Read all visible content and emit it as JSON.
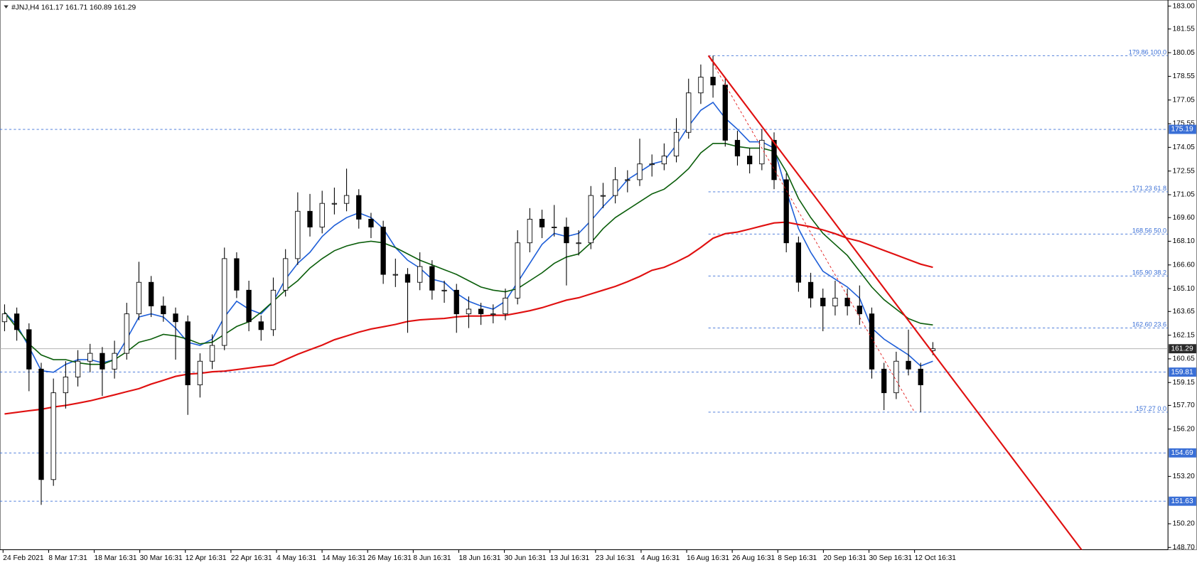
{
  "chart_data": {
    "type": "candlestick",
    "symbol": "#JNJ,H4",
    "ohlc_header": [
      161.17,
      161.71,
      160.89,
      161.29
    ],
    "ylim": [
      148.7,
      183
    ],
    "yticks": [
      {
        "value": 183,
        "label": "183.00"
      },
      181.55,
      180.05,
      178.55,
      177.05,
      175.55,
      174.05,
      172.55,
      171.05,
      {
        "value": 169.6,
        "label": "169.60"
      },
      {
        "value": 168.1,
        "label": "168.10"
      },
      {
        "value": 166.6,
        "label": "166.60"
      },
      {
        "value": 165.1,
        "label": "165.10"
      },
      163.65,
      162.15,
      160.65,
      159.15,
      {
        "value": 157.7,
        "label": "157.70"
      },
      {
        "value": 156.2,
        "label": "156.20"
      },
      {
        "value": 153.2,
        "label": "153.20"
      },
      {
        "value": 150.2,
        "label": "150.20"
      },
      {
        "value": 148.7,
        "label": "148.70"
      }
    ],
    "time_labels": [
      "24 Feb 2021",
      "8 Mar 17:31",
      "18 Mar 16:31",
      "30 Mar 16:31",
      "12 Apr 16:31",
      "22 Apr 16:31",
      "4 May 16:31",
      "14 May 16:31",
      "26 May 16:31",
      "8 Jun 16:31",
      "18 Jun 16:31",
      "30 Jun 16:31",
      "13 Jul 16:31",
      "23 Jul 16:31",
      "4 Aug 16:31",
      "16 Aug 16:31",
      "26 Aug 16:31",
      "8 Sep 16:31",
      "20 Sep 16:31",
      "30 Sep 16:31",
      "12 Oct 16:31"
    ],
    "candles": [
      [
        163.0,
        164.1,
        162.4,
        163.5
      ],
      [
        163.5,
        163.9,
        161.8,
        162.5
      ],
      [
        162.5,
        162.9,
        158.6,
        160
      ],
      [
        160,
        160.4,
        151.4,
        153
      ],
      [
        153,
        159.4,
        152.6,
        158.5
      ],
      [
        158.5,
        160.5,
        157.5,
        159.5
      ],
      [
        159.5,
        161.2,
        158.9,
        160.5
      ],
      [
        160.5,
        161.6,
        159.8,
        161
      ],
      [
        161,
        161.4,
        158.3,
        160
      ],
      [
        160,
        161.8,
        159.4,
        161
      ],
      [
        161,
        164.2,
        160.6,
        163.5
      ],
      [
        163.5,
        166.8,
        163.1,
        165.5
      ],
      [
        165.5,
        165.9,
        163.3,
        164
      ],
      [
        164,
        164.6,
        163,
        163.5
      ],
      [
        163.5,
        163.9,
        160.6,
        163
      ],
      [
        163,
        163.4,
        157.1,
        159
      ],
      [
        159,
        161,
        158.2,
        160.5
      ],
      [
        160.5,
        162.2,
        160,
        161.5
      ],
      [
        161.5,
        167.7,
        161.2,
        167
      ],
      [
        167,
        167.4,
        164.5,
        165
      ],
      [
        165,
        165.6,
        162.4,
        163
      ],
      [
        163,
        163.4,
        161.8,
        162.5
      ],
      [
        162.5,
        165.8,
        162.1,
        165
      ],
      [
        165,
        167.6,
        164.6,
        167
      ],
      [
        167,
        171.2,
        166.6,
        170
      ],
      [
        170,
        171.1,
        168.4,
        169
      ],
      [
        169,
        171.3,
        168.6,
        170.5
      ],
      [
        170.5,
        171.5,
        169.8,
        170.5
      ],
      [
        170.5,
        172.7,
        170,
        171
      ],
      [
        171,
        171.4,
        168.9,
        169.5
      ],
      [
        169.5,
        169.9,
        168.3,
        169
      ],
      [
        169,
        169.4,
        165.4,
        166
      ],
      [
        166,
        167,
        165.2,
        166
      ],
      [
        166,
        166.4,
        162.3,
        165.5
      ],
      [
        165.5,
        167.4,
        165,
        166.5
      ],
      [
        166.5,
        166.9,
        164.4,
        165
      ],
      [
        165,
        165.6,
        164.2,
        165
      ],
      [
        165,
        165.4,
        162.3,
        163.5
      ],
      [
        163.5,
        164.6,
        162.6,
        163.8
      ],
      [
        163.8,
        164.2,
        162.8,
        163.5
      ],
      [
        163.5,
        164.1,
        162.9,
        163.5
      ],
      [
        163.5,
        165.1,
        163.1,
        164.5
      ],
      [
        164.5,
        168.8,
        164.1,
        168
      ],
      [
        168,
        170.2,
        167.4,
        169.5
      ],
      [
        169.5,
        170.1,
        168.3,
        169
      ],
      [
        169,
        170.4,
        168.4,
        169
      ],
      [
        169,
        169.6,
        165.3,
        168
      ],
      [
        168,
        168.8,
        167.2,
        168
      ],
      [
        168,
        171.6,
        167.6,
        171
      ],
      [
        171,
        171.8,
        170.2,
        171
      ],
      [
        171,
        172.8,
        170.5,
        172
      ],
      [
        172,
        172.6,
        171.2,
        172
      ],
      [
        172,
        174.6,
        171.6,
        173
      ],
      [
        173,
        173.6,
        172.2,
        173
      ],
      [
        173,
        174.3,
        172.6,
        173.5
      ],
      [
        173.5,
        175.9,
        173.1,
        175
      ],
      [
        175,
        178.4,
        174.6,
        177.5
      ],
      [
        177.5,
        179.3,
        176.8,
        178.5
      ],
      [
        178.5,
        179.86,
        177.2,
        178
      ],
      [
        178,
        178.4,
        174.1,
        174.5
      ],
      [
        174.5,
        175.1,
        172.9,
        173.5
      ],
      [
        173.5,
        174,
        172.4,
        173
      ],
      [
        173,
        175.2,
        172.6,
        174.5
      ],
      [
        174.5,
        175,
        171.4,
        172
      ],
      [
        172,
        172.4,
        167.4,
        168
      ],
      [
        168,
        168.4,
        164.9,
        165.5
      ],
      [
        165.5,
        166.1,
        163.9,
        164.5
      ],
      [
        164.5,
        165.1,
        162.4,
        164
      ],
      [
        164,
        165.6,
        163.4,
        164.5
      ],
      [
        164.5,
        165.1,
        163.4,
        164
      ],
      [
        164,
        165.3,
        162.8,
        163.5
      ],
      [
        163.5,
        163.9,
        159.4,
        160
      ],
      [
        160,
        160.4,
        157.4,
        158.5
      ],
      [
        158.5,
        161.1,
        158.1,
        160.5
      ],
      [
        160.5,
        162.5,
        159.6,
        160
      ],
      [
        160,
        160.4,
        157.27,
        159
      ],
      [
        161.17,
        161.71,
        160.89,
        161.29
      ]
    ],
    "series": [
      {
        "color": "#1f5fd8",
        "values": [
          163.6,
          162.8,
          161.4,
          159.9,
          159.8,
          160.3,
          160.6,
          160.6,
          160.4,
          160.6,
          161.9,
          163.3,
          163.5,
          163.3,
          162.6,
          161.7,
          161.5,
          161.9,
          163.3,
          164.3,
          163.8,
          163.5,
          164.3,
          165.7,
          166.7,
          167.4,
          168.4,
          169.1,
          169.6,
          169.9,
          169.6,
          168.9,
          167.7,
          166.9,
          166.4,
          165.7,
          165.5,
          164.8,
          164.3,
          164.0,
          163.8,
          164.3,
          165.5,
          166.7,
          167.9,
          168.6,
          168.4,
          168.6,
          169.4,
          170.3,
          171.1,
          172.0,
          172.5,
          173.0,
          173.2,
          174.2,
          175.4,
          176.4,
          176.9,
          175.9,
          175.2,
          174.4,
          174.4,
          174.0,
          171.3,
          168.9,
          167.4,
          166.2,
          165.7,
          165.2,
          164.5,
          162.6,
          161.9,
          161.4,
          160.9,
          160.2,
          160.5
        ]
      },
      {
        "color": "#0b5e0b",
        "values": [
          163.6,
          162.6,
          161.6,
          160.9,
          160.6,
          160.6,
          160.4,
          160.3,
          160.3,
          160.6,
          161.1,
          161.7,
          161.9,
          162.2,
          162.1,
          161.9,
          161.6,
          161.7,
          162.2,
          162.7,
          163.0,
          163.6,
          164.3,
          165.0,
          165.6,
          166.4,
          167.0,
          167.5,
          167.8,
          168.0,
          168.1,
          168.0,
          167.7,
          167.3,
          166.9,
          166.6,
          166.3,
          166.0,
          165.6,
          165.2,
          165.0,
          164.9,
          165.1,
          165.6,
          166.1,
          166.7,
          167.1,
          167.3,
          168.0,
          168.9,
          169.6,
          170.1,
          170.6,
          171.1,
          171.4,
          172.0,
          172.7,
          173.7,
          174.3,
          174.3,
          174.1,
          174.0,
          174.0,
          173.8,
          172.5,
          170.8,
          169.6,
          168.6,
          167.9,
          167.2,
          166.2,
          165.2,
          164.4,
          163.8,
          163.2,
          162.9,
          162.8
        ]
      },
      {
        "color": "#e01010",
        "values": [
          157.16,
          157.26,
          157.36,
          157.45,
          157.6,
          157.7,
          157.84,
          157.99,
          158.18,
          158.37,
          158.57,
          158.76,
          159.05,
          159.29,
          159.54,
          159.68,
          159.73,
          159.83,
          159.87,
          159.97,
          160.07,
          160.17,
          160.26,
          160.6,
          160.94,
          161.23,
          161.52,
          161.86,
          162.1,
          162.34,
          162.54,
          162.68,
          162.83,
          163.02,
          163.12,
          163.17,
          163.21,
          163.31,
          163.36,
          163.36,
          163.41,
          163.41,
          163.55,
          163.7,
          163.89,
          164.13,
          164.37,
          164.52,
          164.76,
          165.0,
          165.24,
          165.54,
          165.87,
          166.26,
          166.45,
          166.79,
          167.18,
          167.71,
          168.29,
          168.58,
          168.68,
          168.87,
          169.07,
          169.26,
          169.31,
          169.16,
          169.02,
          168.82,
          168.58,
          168.29,
          168.1,
          167.81,
          167.52,
          167.23,
          166.94,
          166.65,
          166.45
        ]
      }
    ],
    "hlines": [
      175.19,
      159.81,
      154.69,
      151.63
    ],
    "hline_color": "#3a6fd6",
    "last_price": 161.29,
    "fib_line": {
      "x": [
        57.625,
        74.5
      ],
      "y": [
        179.86,
        157.27
      ]
    },
    "fib_levels": [
      {
        "value": 179.86,
        "label": "179.86 100.0"
      },
      {
        "value": 171.23,
        "label": "171.23 61.8"
      },
      {
        "value": 168.56,
        "label": "168.56 50.0"
      },
      {
        "value": 165.9,
        "label": "165.90 38.2"
      },
      {
        "value": 162.6,
        "label": "162.60 23.6"
      },
      {
        "value": 157.27,
        "label": "157.27 0.0"
      }
    ],
    "trendline": {
      "x": [
        57.625,
        89.3
      ],
      "y": [
        179.86,
        147.4
      ],
      "color": "#e01010"
    }
  }
}
